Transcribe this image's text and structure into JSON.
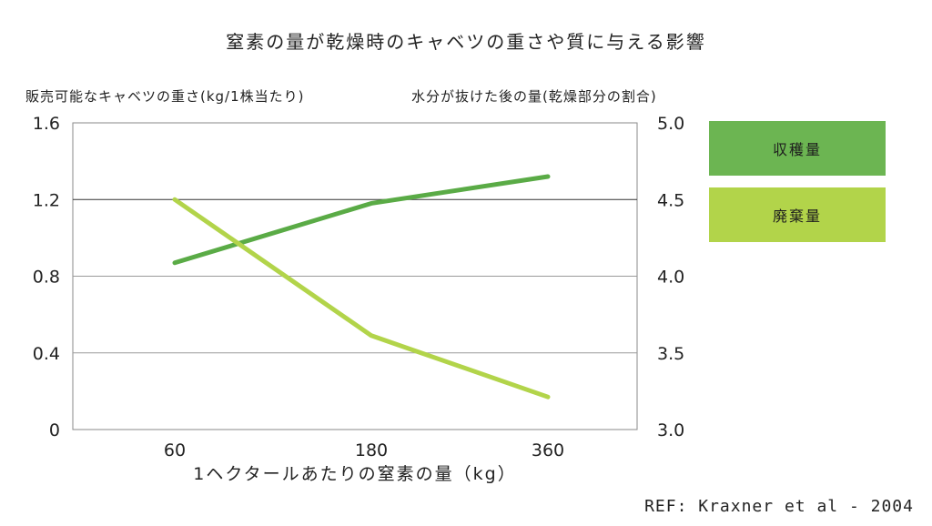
{
  "chart_data": {
    "type": "line",
    "title": "窒素の量が乾燥時のキャベツの重さや質に与える影響",
    "xlabel": "1ヘクタールあたりの窒素の量（kg）",
    "ylabel_left": "販売可能なキャベツの重さ(kg/1株当たり)",
    "ylabel_right": "水分が抜けた後の量(乾燥部分の割合)",
    "categories": [
      "60",
      "180",
      "360"
    ],
    "ylim_left": [
      0,
      1.6
    ],
    "yticks_left": [
      "0",
      "0.4",
      "0.8",
      "1.2",
      "1.6"
    ],
    "ylim_right": [
      3.0,
      5.0
    ],
    "yticks_right": [
      "3.0",
      "3.5",
      "4.0",
      "4.5",
      "5.0"
    ],
    "grid": true,
    "legend_position": "right",
    "series": [
      {
        "name": "収穫量",
        "axis": "left",
        "values": [
          0.87,
          1.18,
          1.32
        ],
        "color": "#5aab46"
      },
      {
        "name": "廃棄量",
        "axis": "left",
        "values": [
          1.2,
          0.49,
          0.17
        ],
        "color": "#b2d44a"
      }
    ]
  },
  "legend": {
    "harvest_color": "#6cb552",
    "waste_color": "#b2d44a"
  },
  "reference": "REF: Kraxner et al - 2004"
}
